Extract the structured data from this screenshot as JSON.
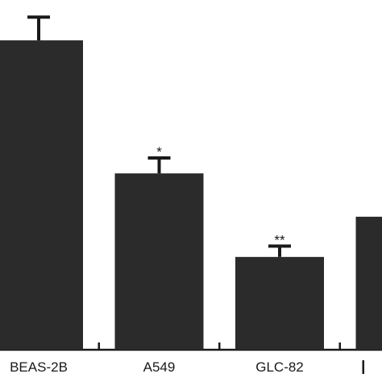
{
  "chart_data": {
    "type": "bar",
    "categories": [
      "BEAS-2B",
      "A549",
      "GLC-82",
      ""
    ],
    "values": [
      1.0,
      0.57,
      0.3,
      0.43
    ],
    "errors": [
      0.075,
      0.05,
      0.035,
      0
    ],
    "significance": [
      "",
      "*",
      "**",
      ""
    ],
    "ylim": [
      0,
      1.12
    ],
    "bar_color": "#2b2b2b",
    "axis_color": "#1a1a1a",
    "grid": false
  }
}
